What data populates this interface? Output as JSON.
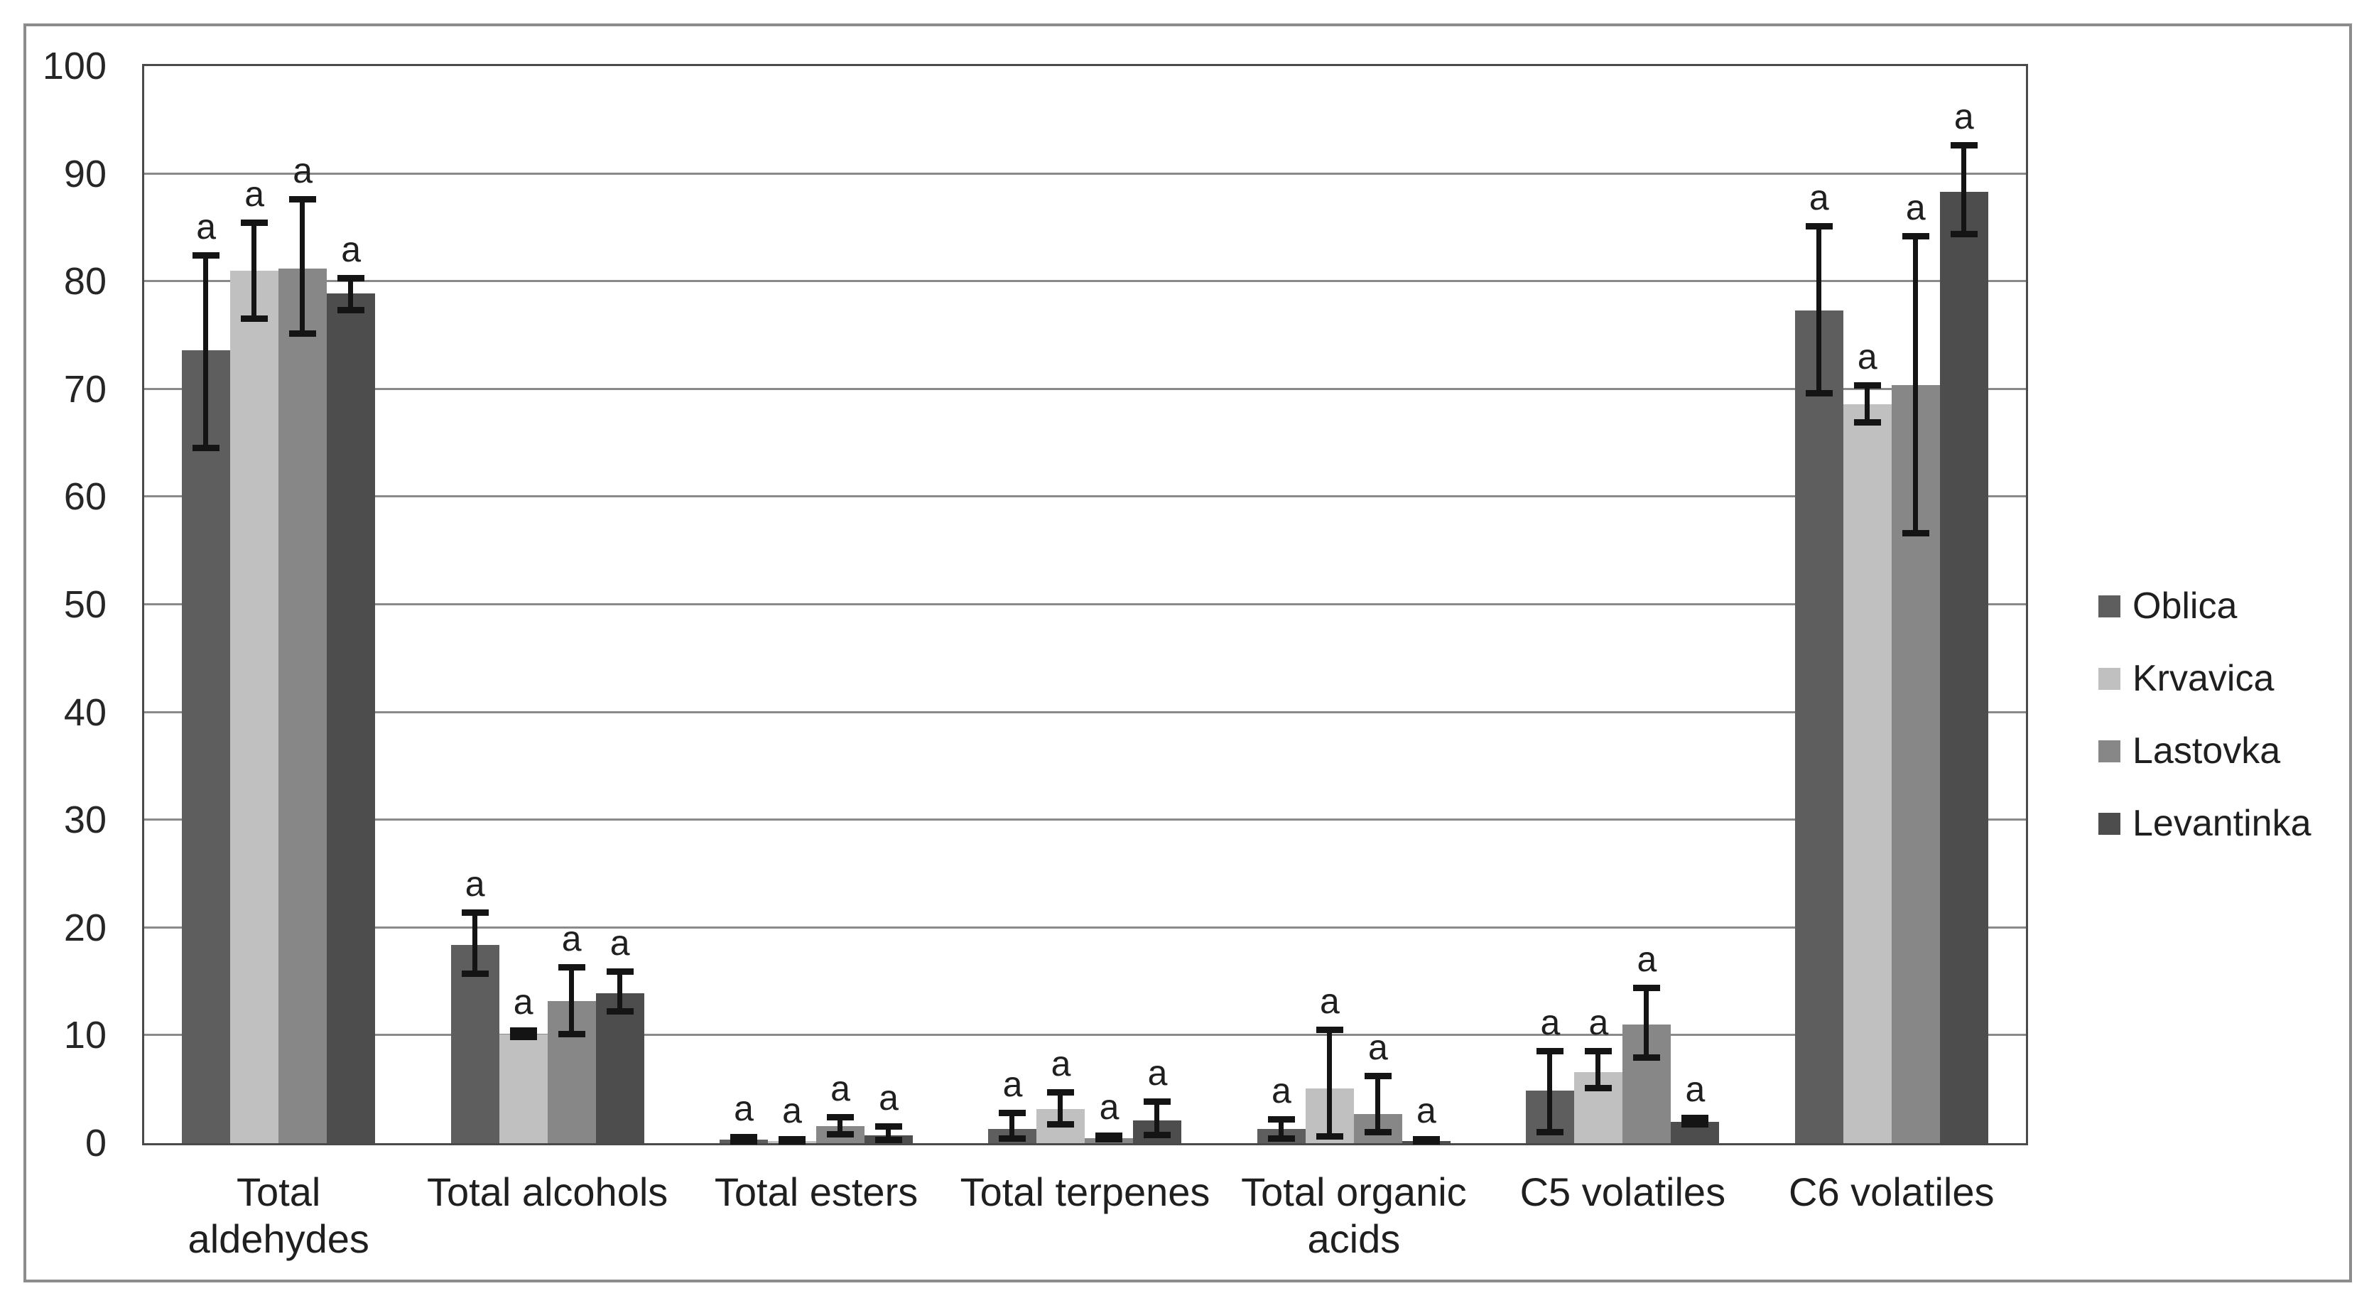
{
  "figure": {
    "description": "Grouped bar chart of volatile compound classes for four olive varieties, with error bars and significance letters",
    "background": "#ffffff",
    "frame_border_color": "#8c8c8c",
    "plot_border_color": "#4a4a4a",
    "gridline_color": "#8a8a8a",
    "error_bar_color": "#141414",
    "text_color": "#1f1f1f"
  },
  "chart_data": {
    "type": "bar",
    "title": "",
    "xlabel": "",
    "ylabel": "",
    "ylim": [
      0,
      100
    ],
    "ytick_step": 10,
    "yticks": [
      0,
      10,
      20,
      30,
      40,
      50,
      60,
      70,
      80,
      90,
      100
    ],
    "grid": true,
    "legend_position": "right",
    "bar_label": "a",
    "categories": [
      "Total aldehydes",
      "Total alcohols",
      "Total esters",
      "Total terpenes",
      "Total organic acids",
      "C5 volatiles",
      "C6 volatiles"
    ],
    "series": [
      {
        "name": "Oblica",
        "color": "#5e5e5e",
        "values": [
          73.6,
          18.4,
          0.3,
          1.3,
          1.3,
          4.9,
          77.3
        ],
        "err_low": [
          64.5,
          15.7,
          0.15,
          0.4,
          0.4,
          1.0,
          69.6
        ],
        "err_high": [
          82.4,
          21.4,
          0.5,
          2.8,
          2.2,
          8.5,
          85.1
        ]
      },
      {
        "name": "Krvavica",
        "color": "#c0c0c0",
        "values": [
          81.0,
          10.1,
          0.2,
          3.2,
          5.1,
          6.6,
          68.6
        ],
        "err_low": [
          76.5,
          9.8,
          0.1,
          1.7,
          0.6,
          5.1,
          66.9
        ],
        "err_high": [
          85.4,
          10.4,
          0.35,
          4.7,
          10.5,
          8.5,
          70.3
        ]
      },
      {
        "name": "Lastovka",
        "color": "#878787",
        "values": [
          81.2,
          13.2,
          1.6,
          0.45,
          2.7,
          11.0,
          70.4
        ],
        "err_low": [
          75.1,
          10.1,
          0.8,
          0.3,
          1.0,
          7.9,
          56.6
        ],
        "err_high": [
          87.6,
          16.3,
          2.4,
          0.65,
          6.2,
          14.4,
          84.2
        ]
      },
      {
        "name": "Levantinka",
        "color": "#4d4d4d",
        "values": [
          78.9,
          13.9,
          0.7,
          2.1,
          0.2,
          2.0,
          88.3
        ],
        "err_low": [
          77.3,
          12.2,
          0.25,
          0.75,
          0.1,
          1.7,
          84.4
        ],
        "err_high": [
          80.3,
          15.9,
          1.5,
          3.8,
          0.35,
          2.3,
          92.6
        ]
      }
    ]
  }
}
